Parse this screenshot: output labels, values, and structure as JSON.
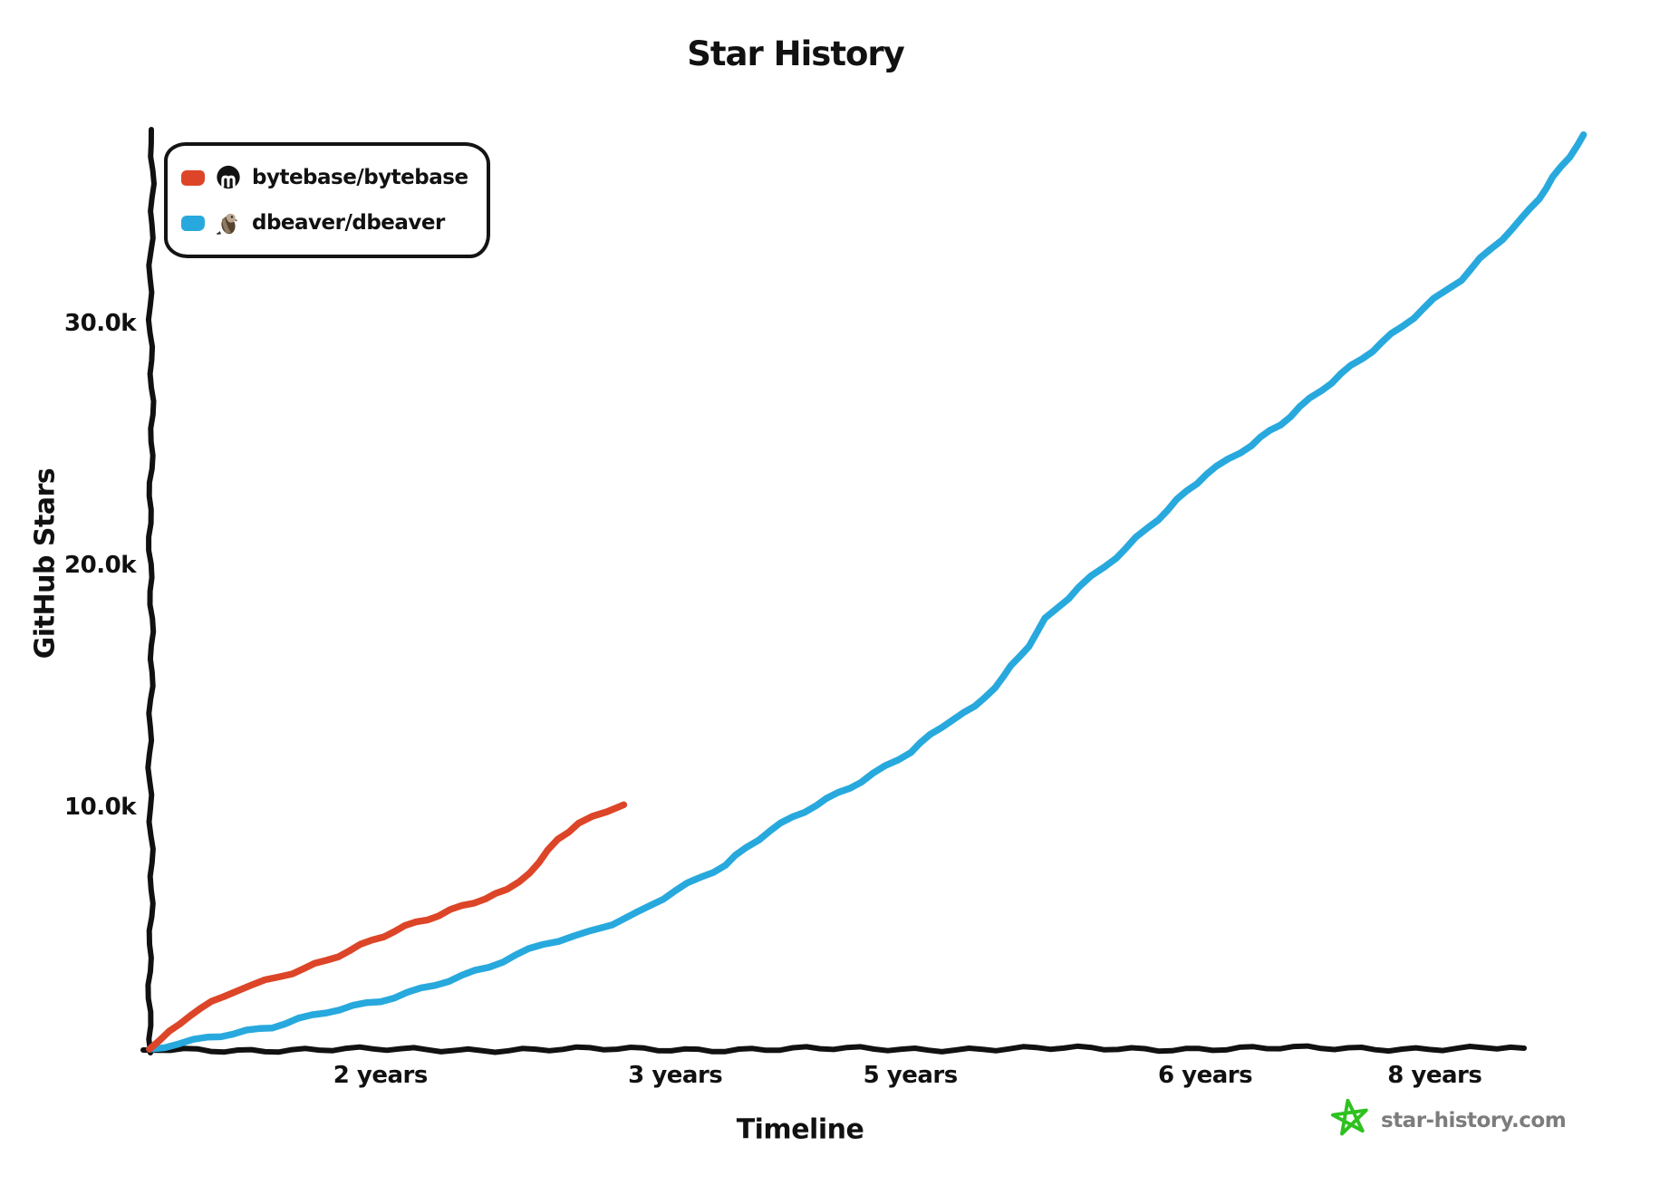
{
  "chart_data": {
    "type": "line",
    "title": "Star History",
    "xlabel": "Timeline",
    "ylabel": "GitHub Stars",
    "ylim": [
      0,
      38200
    ],
    "grid": false,
    "legend_position": "top-left",
    "x_ticks": [
      {
        "label": "2 years",
        "pos": 0.166
      },
      {
        "label": "3 years",
        "pos": 0.378
      },
      {
        "label": "5 years",
        "pos": 0.547
      },
      {
        "label": "6 years",
        "pos": 0.759
      },
      {
        "label": "8 years",
        "pos": 0.924
      }
    ],
    "y_ticks": [
      {
        "label": "10.0k",
        "value": 10000
      },
      {
        "label": "20.0k",
        "value": 20000
      },
      {
        "label": "30.0k",
        "value": 30000
      }
    ],
    "series": [
      {
        "name": "bytebase/bytebase",
        "color": "#dd4528",
        "icon": "bytebase-logo-icon",
        "points": [
          [
            0,
            0
          ],
          [
            0.029,
            1400
          ],
          [
            0.062,
            2400
          ],
          [
            0.094,
            3000
          ],
          [
            0.127,
            3700
          ],
          [
            0.16,
            4500
          ],
          [
            0.192,
            5200
          ],
          [
            0.208,
            5500
          ],
          [
            0.225,
            5900
          ],
          [
            0.257,
            6600
          ],
          [
            0.28,
            7700
          ],
          [
            0.293,
            8700
          ],
          [
            0.309,
            9300
          ],
          [
            0.329,
            9800
          ],
          [
            0.341,
            10100
          ]
        ]
      },
      {
        "name": "dbeaver/dbeaver",
        "color": "#28a9dd",
        "icon": "beaver-icon",
        "points": [
          [
            0,
            0
          ],
          [
            0.042,
            520
          ],
          [
            0.088,
            900
          ],
          [
            0.127,
            1500
          ],
          [
            0.166,
            2000
          ],
          [
            0.205,
            2700
          ],
          [
            0.244,
            3400
          ],
          [
            0.283,
            4300
          ],
          [
            0.316,
            4800
          ],
          [
            0.349,
            5600
          ],
          [
            0.378,
            6600
          ],
          [
            0.414,
            7600
          ],
          [
            0.446,
            9000
          ],
          [
            0.479,
            10100
          ],
          [
            0.511,
            11100
          ],
          [
            0.547,
            12300
          ],
          [
            0.577,
            13600
          ],
          [
            0.594,
            14100
          ],
          [
            0.614,
            15400
          ],
          [
            0.631,
            16700
          ],
          [
            0.644,
            17800
          ],
          [
            0.668,
            19100
          ],
          [
            0.687,
            19900
          ],
          [
            0.718,
            21500
          ],
          [
            0.739,
            22700
          ],
          [
            0.759,
            23800
          ],
          [
            0.792,
            25000
          ],
          [
            0.813,
            25800
          ],
          [
            0.857,
            27900
          ],
          [
            0.9,
            29900
          ],
          [
            0.924,
            31000
          ],
          [
            0.943,
            31800
          ],
          [
            0.987,
            34300
          ],
          [
            1.031,
            37800
          ]
        ]
      }
    ]
  },
  "watermark": {
    "text": "star-history.com",
    "text_color": "#7c7c7c",
    "star_color": "#2ec11f"
  },
  "colors": {
    "axis": "#111111",
    "background": "#ffffff"
  }
}
